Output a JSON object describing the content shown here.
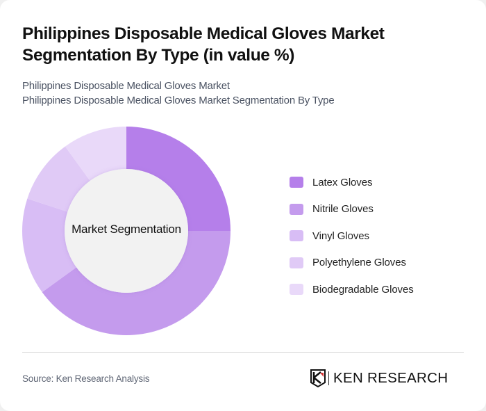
{
  "header": {
    "title": "Philippines Disposable Medical Gloves Market Segmentation By Type (in value %)",
    "subtitle_line1": "Philippines Disposable Medical Gloves Market",
    "subtitle_line2": "Philippines Disposable Medical Gloves Market Segmentation By Type"
  },
  "chart": {
    "center_label": "Market Segmentation"
  },
  "legend": [
    {
      "label": "Latex Gloves",
      "color": "#b57fea"
    },
    {
      "label": "Nitrile Gloves",
      "color": "#c49bed"
    },
    {
      "label": "Vinyl Gloves",
      "color": "#d8bdf5"
    },
    {
      "label": "Polyethylene Gloves",
      "color": "#e0caf6"
    },
    {
      "label": "Biodegradable Gloves",
      "color": "#e9d9f9"
    }
  ],
  "footer": {
    "source": "Source: Ken Research Analysis",
    "logo_text": "KEN RESEARCH",
    "logo_icon": "ken-research-shield-k-icon"
  },
  "chart_data": {
    "type": "pie",
    "variant": "donut",
    "title": "Philippines Disposable Medical Gloves Market Segmentation By Type (in value %)",
    "subtitle": "Philippines Disposable Medical Gloves Market Segmentation By Type",
    "center_text": "Market Segmentation",
    "categories": [
      "Latex Gloves",
      "Nitrile Gloves",
      "Vinyl Gloves",
      "Polyethylene Gloves",
      "Biodegradable Gloves"
    ],
    "values": [
      25,
      40,
      15,
      10,
      10
    ],
    "unit": "%",
    "colors": [
      "#b57fea",
      "#c49bed",
      "#d8bdf5",
      "#e0caf6",
      "#e9d9f9"
    ],
    "start_angle_deg": 0,
    "direction": "clockwise",
    "legend_position": "right",
    "data_labels_shown": false
  }
}
